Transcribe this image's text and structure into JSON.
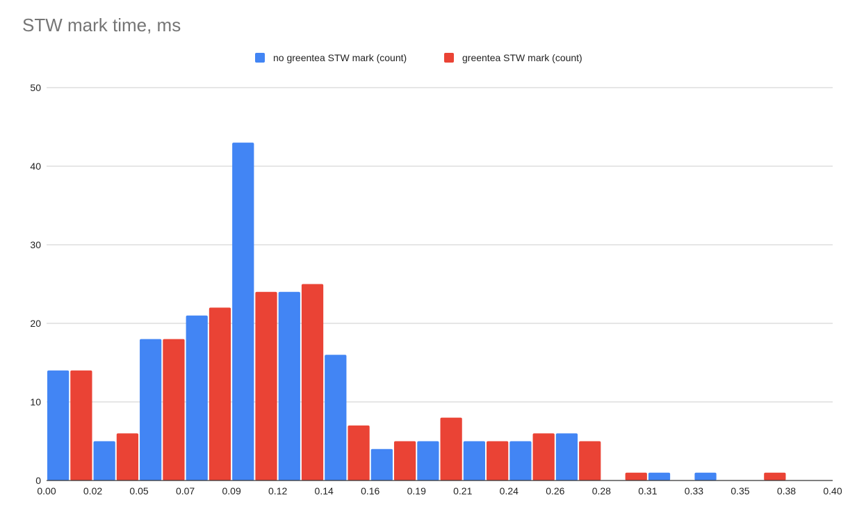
{
  "chart_data": {
    "type": "bar",
    "title": "STW mark time, ms",
    "xlabel": "",
    "ylabel": "",
    "ylim": [
      0,
      50
    ],
    "xlim": [
      0.0,
      0.4
    ],
    "grid": true,
    "legend_position": "top-center",
    "y_ticks": [
      "0",
      "10",
      "20",
      "30",
      "40",
      "50"
    ],
    "x_ticks": [
      "0.00",
      "0.02",
      "0.05",
      "0.07",
      "0.09",
      "0.12",
      "0.14",
      "0.16",
      "0.19",
      "0.21",
      "0.24",
      "0.26",
      "0.28",
      "0.31",
      "0.33",
      "0.35",
      "0.38",
      "0.40"
    ],
    "series": [
      {
        "name": "no greentea STW mark (count)",
        "color": "#4285F4",
        "values": [
          14,
          5,
          18,
          21,
          43,
          24,
          16,
          4,
          5,
          5,
          5,
          6,
          0,
          1,
          1,
          0,
          0
        ]
      },
      {
        "name": "greentea STW mark (count)",
        "color": "#EA4335",
        "values": [
          14,
          6,
          18,
          22,
          24,
          25,
          7,
          5,
          8,
          5,
          6,
          5,
          1,
          0,
          0,
          1,
          0
        ]
      }
    ]
  }
}
